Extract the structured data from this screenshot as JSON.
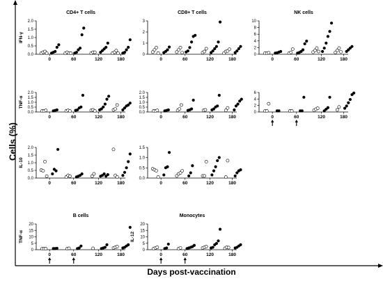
{
  "figure": {
    "y_label": "Cells (%)",
    "x_label": "Days post-vaccination"
  },
  "chart_data": [
    {
      "type": "scatter",
      "title": "CD4+ T cells",
      "ylabel": "IFN-γ",
      "ylim": [
        0,
        2
      ],
      "yticks": [
        "0.0",
        "0.5",
        "1.0",
        "1.5",
        "2.0"
      ],
      "categories": [
        "0",
        "60",
        "120",
        "180"
      ],
      "arrows": [],
      "groups": [
        {
          "open": [
            0,
            0.05,
            0.1,
            0
          ],
          "filled": [
            0,
            0.05,
            0.1,
            0.35,
            0.5
          ]
        },
        {
          "open": [
            0,
            0.05,
            0,
            0
          ],
          "filled": [
            0,
            0.05,
            0.2,
            0.3,
            1.1,
            1.5
          ]
        },
        {
          "open": [
            0,
            0.05,
            0.05
          ],
          "filled": [
            0.05,
            0.15,
            0.25,
            0.35,
            0.6
          ]
        },
        {
          "open": [
            0,
            0.05,
            0.15,
            0
          ],
          "filled": [
            0,
            0.05,
            0.2,
            0.35,
            0.8
          ]
        }
      ]
    },
    {
      "type": "scatter",
      "title": "CD8+ T cells",
      "ylabel": "",
      "ylim": [
        0,
        3
      ],
      "yticks": [
        "0",
        "1",
        "2",
        "3"
      ],
      "categories": [
        "0",
        "60",
        "120",
        "180"
      ],
      "arrows": [],
      "groups": [
        {
          "open": [
            0.1,
            0.3,
            0.5,
            0
          ],
          "filled": [
            0.05,
            0.15,
            0.3,
            0.55
          ]
        },
        {
          "open": [
            0.1,
            0.3,
            0.5,
            0.05
          ],
          "filled": [
            0.1,
            0.2,
            0.5,
            1.0,
            1.5,
            1.6
          ]
        },
        {
          "open": [
            0.05,
            0.15,
            0.4
          ],
          "filled": [
            0.05,
            0.2,
            0.4,
            0.6,
            1.0,
            2.8
          ]
        },
        {
          "open": [
            0,
            0.15,
            0.2,
            0.35
          ],
          "filled": [
            0.05,
            0.2,
            0.4,
            0.6
          ]
        }
      ]
    },
    {
      "type": "scatter",
      "title": "NK cells",
      "ylabel": "",
      "ylim": [
        0,
        10
      ],
      "yticks": [
        "0",
        "2",
        "4",
        "6",
        "8",
        "10"
      ],
      "categories": [
        "0",
        "60",
        "120",
        "180"
      ],
      "arrows": [],
      "groups": [
        {
          "open": [
            0,
            0,
            0.1
          ],
          "filled": [
            0,
            0.1,
            0.3,
            0.5
          ]
        },
        {
          "open": [
            0,
            0.2,
            1.2
          ],
          "filled": [
            0,
            0.2,
            0.5,
            1.0,
            2.8,
            3.6
          ]
        },
        {
          "open": [
            0.3,
            0.8,
            1.5,
            0.5
          ],
          "filled": [
            0.5,
            1.5,
            3.0,
            5.0,
            6.5,
            9.0
          ]
        },
        {
          "open": [
            0.2,
            0.8,
            1.5,
            0.4
          ],
          "filled": [
            0.5,
            1.0,
            1.5,
            2.0
          ]
        }
      ]
    },
    {
      "type": "scatter",
      "title": "",
      "ylabel": "TNF-α",
      "ylim": [
        0,
        2
      ],
      "yticks": [
        "0.0",
        "0.5",
        "1.0",
        "1.5",
        "2.0"
      ],
      "categories": [
        "0",
        "60",
        "120",
        "180"
      ],
      "arrows": [],
      "groups": [
        {
          "open": [
            0,
            0,
            0.05
          ],
          "filled": [
            0,
            0.05,
            0.1
          ]
        },
        {
          "open": [
            0,
            0.05,
            0
          ],
          "filled": [
            0.05,
            0.1,
            0.3,
            0.4,
            1.6
          ]
        },
        {
          "open": [
            0.05,
            0.1,
            0
          ],
          "filled": [
            0.1,
            0.2,
            0.4,
            0.7,
            1.2,
            1.5
          ]
        },
        {
          "open": [
            0.1,
            0.2,
            0.6
          ],
          "filled": [
            0.1,
            0.3,
            0.5,
            0.6,
            0.8
          ]
        }
      ]
    },
    {
      "type": "scatter",
      "title": "",
      "ylabel": "",
      "ylim": [
        0,
        2
      ],
      "yticks": [
        "0.0",
        "0.5",
        "1.0",
        "1.5",
        "2.0"
      ],
      "categories": [
        "0",
        "60",
        "120",
        "180"
      ],
      "arrows": [],
      "groups": [
        {
          "open": [
            0,
            0,
            0.05
          ],
          "filled": [
            0,
            0.05,
            0.1
          ]
        },
        {
          "open": [
            0.05,
            0.2,
            0.6
          ],
          "filled": [
            0.05,
            0.1,
            0.2,
            1.1
          ]
        },
        {
          "open": [
            0.05,
            0.1
          ],
          "filled": [
            0.1,
            0.2,
            0.4,
            0.5,
            1.6
          ]
        },
        {
          "open": [
            0.05,
            0.3
          ],
          "filled": [
            0.1,
            0.5,
            0.7,
            1.0,
            1.2
          ]
        }
      ]
    },
    {
      "type": "scatter",
      "title": "",
      "ylabel": "",
      "ylim": [
        0,
        6
      ],
      "yticks": [
        "0",
        "2",
        "4",
        "6"
      ],
      "categories": [
        "0",
        "60",
        "120",
        "180"
      ],
      "arrows": [
        "0",
        "60"
      ],
      "groups": [
        {
          "open": [
            0,
            0,
            2.2
          ],
          "filled": [
            0,
            0
          ]
        },
        {
          "open": [
            0,
            0
          ],
          "filled": [
            0,
            0,
            4.2
          ]
        },
        {
          "open": [
            0.2,
            0.5,
            0.8
          ],
          "filled": [
            0,
            0.5,
            1.0,
            4.2
          ]
        },
        {
          "open": [
            0.3,
            1.2
          ],
          "filled": [
            0.8,
            1.5,
            2.5,
            3.5,
            5.0,
            5.5
          ]
        }
      ]
    },
    {
      "type": "scatter",
      "title": "",
      "ylabel": "IL-10",
      "ylim": [
        0,
        2
      ],
      "yticks": [
        "0.0",
        "0.5",
        "1.0",
        "1.5",
        "2.0"
      ],
      "categories": [
        "0",
        "60",
        "120",
        "180"
      ],
      "arrows": [],
      "groups": [
        {
          "open": [
            0.45,
            0.4,
            1.0,
            0.05
          ],
          "filled": [
            0.2,
            0.5,
            0.4,
            1.8
          ]
        },
        {
          "open": [
            0,
            0.1,
            0.05
          ],
          "filled": [
            0,
            0.05,
            0.1,
            0.2
          ]
        },
        {
          "open": [
            0.05,
            0.2
          ],
          "filled": [
            0.05,
            0.1,
            0.2,
            0.05,
            0.15
          ]
        },
        {
          "open": [
            1.8,
            0.1,
            0
          ],
          "filled": [
            0.1,
            0.3,
            0.6,
            1.0,
            1.5
          ]
        }
      ]
    },
    {
      "type": "scatter",
      "title": "",
      "ylabel": "",
      "ylim": [
        0,
        1.5
      ],
      "yticks": [
        "0.0",
        "0.5",
        "1.0",
        "1.5"
      ],
      "categories": [
        "0",
        "60",
        "120",
        "180"
      ],
      "arrows": [],
      "groups": [
        {
          "open": [
            0.4,
            0.35,
            0.3,
            0
          ],
          "filled": [
            0.1,
            0.45,
            0.5,
            1.2
          ]
        },
        {
          "open": [
            0.05,
            0.15,
            0.2,
            0.3
          ],
          "filled": [
            0.05,
            0.2,
            0.55
          ]
        },
        {
          "open": [
            0.05,
            0.05,
            0.75
          ],
          "filled": [
            0.1,
            0.3,
            0.5,
            0.8,
            0.95
          ]
        },
        {
          "open": [
            0,
            0.8
          ],
          "filled": [
            0.05,
            0.2,
            0.3,
            0.35
          ]
        }
      ]
    },
    {
      "type": "scatter",
      "title": "B cells",
      "ylabel": "TNF-α",
      "ylim": [
        0,
        20
      ],
      "yticks": [
        "0",
        "5",
        "10",
        "15",
        "20"
      ],
      "categories": [
        "0",
        "60",
        "120",
        "180"
      ],
      "arrows": [
        "0",
        "60"
      ],
      "groups": [
        {
          "open": [
            0,
            0,
            0
          ],
          "filled": [
            0,
            0,
            0.2
          ]
        },
        {
          "open": [
            0,
            0.2
          ],
          "filled": [
            0,
            0.5,
            2.0
          ]
        },
        {
          "open": [
            0.2
          ],
          "filled": [
            0,
            0.5,
            1.0,
            3.0
          ]
        },
        {
          "open": [
            0.5,
            1.0,
            1.5
          ],
          "filled": [
            0.5,
            1.0,
            2.0,
            3.0,
            16.5
          ]
        }
      ]
    },
    {
      "type": "scatter",
      "title": "Monocytes",
      "ylabel": "IL-12",
      "ylim": [
        0,
        20
      ],
      "yticks": [
        "0",
        "5",
        "10",
        "15",
        "20"
      ],
      "categories": [
        "0",
        "60",
        "120",
        "180"
      ],
      "arrows": [
        "0",
        "60"
      ],
      "groups": [
        {
          "open": [
            0,
            0.5,
            1.0
          ],
          "filled": [
            0,
            0.5,
            3.5
          ]
        },
        {
          "open": [
            0,
            0.5
          ],
          "filled": [
            0,
            0.5,
            1.0,
            1.5,
            2.5
          ]
        },
        {
          "open": [
            0.5,
            1.0,
            1.5
          ],
          "filled": [
            0.5,
            1.0,
            3.0,
            4.0,
            6.0,
            15.0
          ]
        },
        {
          "open": [
            0.2,
            1.0,
            0.8
          ],
          "filled": [
            0.5,
            1.0,
            2.0,
            3.0
          ]
        }
      ]
    }
  ]
}
